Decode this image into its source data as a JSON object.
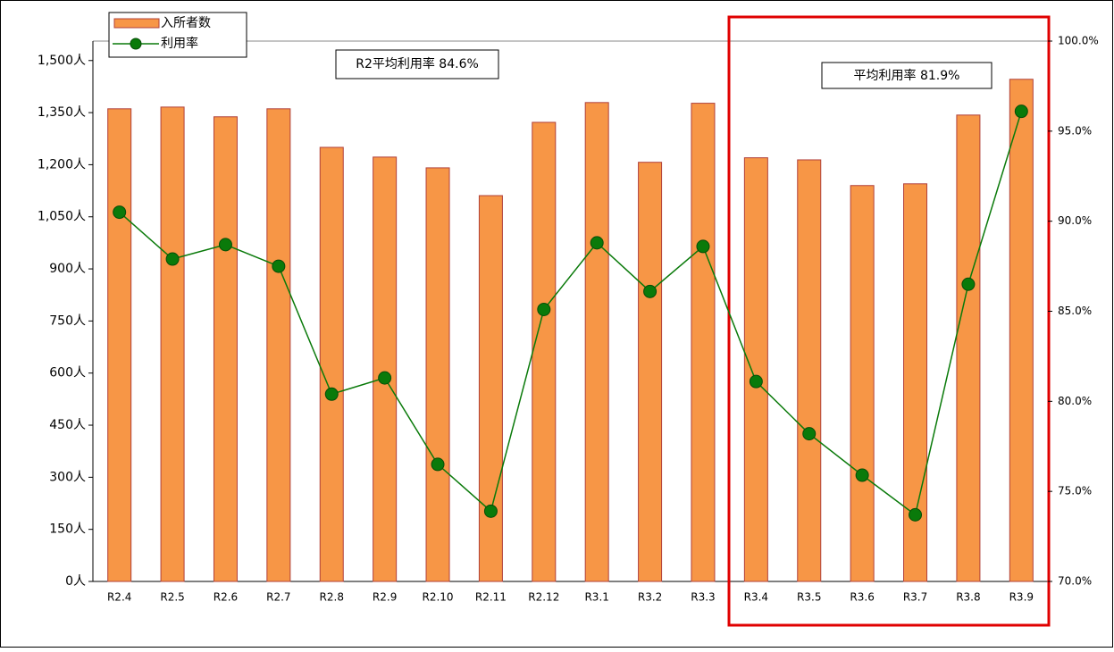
{
  "chart_data": {
    "type": "combo",
    "categories": [
      "R2.4",
      "R2.5",
      "R2.6",
      "R2.7",
      "R2.8",
      "R2.9",
      "R2.10",
      "R2.11",
      "R2.12",
      "R3.1",
      "R3.2",
      "R3.3",
      "R3.4",
      "R3.5",
      "R3.6",
      "R3.7",
      "R3.8",
      "R3.9"
    ],
    "series": [
      {
        "name": "入所者数",
        "type": "bar",
        "color": "#f79646",
        "values": [
          1361,
          1366,
          1338,
          1361,
          1250,
          1222,
          1191,
          1111,
          1322,
          1379,
          1207,
          1377,
          1220,
          1214,
          1140,
          1145,
          1343,
          1446
        ]
      },
      {
        "name": "利用率",
        "type": "line",
        "axis": "y2",
        "color": "#0a7a0a",
        "values": [
          90.5,
          87.9,
          88.7,
          87.5,
          80.4,
          81.3,
          76.5,
          73.9,
          85.1,
          88.8,
          86.1,
          88.6,
          81.1,
          78.2,
          75.9,
          73.7,
          86.5,
          96.1
        ]
      }
    ],
    "ylim": [
      0,
      1556
    ],
    "yticks": [
      {
        "value": 0,
        "label": "0人"
      },
      {
        "value": 150,
        "label": "150人"
      },
      {
        "value": 300,
        "label": "300人"
      },
      {
        "value": 450,
        "label": "450人"
      },
      {
        "value": 600,
        "label": "600人"
      },
      {
        "value": 750,
        "label": "750人"
      },
      {
        "value": 900,
        "label": "900人"
      },
      {
        "value": 1050,
        "label": "1,050人"
      },
      {
        "value": 1200,
        "label": "1,200人"
      },
      {
        "value": 1350,
        "label": "1,350人"
      },
      {
        "value": 1500,
        "label": "1,500人"
      }
    ],
    "y2lim": [
      70,
      100
    ],
    "y2ticks": [
      {
        "value": 70,
        "label": "70.0%"
      },
      {
        "value": 75,
        "label": "75.0%"
      },
      {
        "value": 80,
        "label": "80.0%"
      },
      {
        "value": 85,
        "label": "85.0%"
      },
      {
        "value": 90,
        "label": "90.0%"
      },
      {
        "value": 95,
        "label": "95.0%"
      },
      {
        "value": 100,
        "label": "100.0%"
      }
    ],
    "annotations": [
      "R2平均利用率 84.6%",
      "平均利用率 81.9%"
    ]
  }
}
